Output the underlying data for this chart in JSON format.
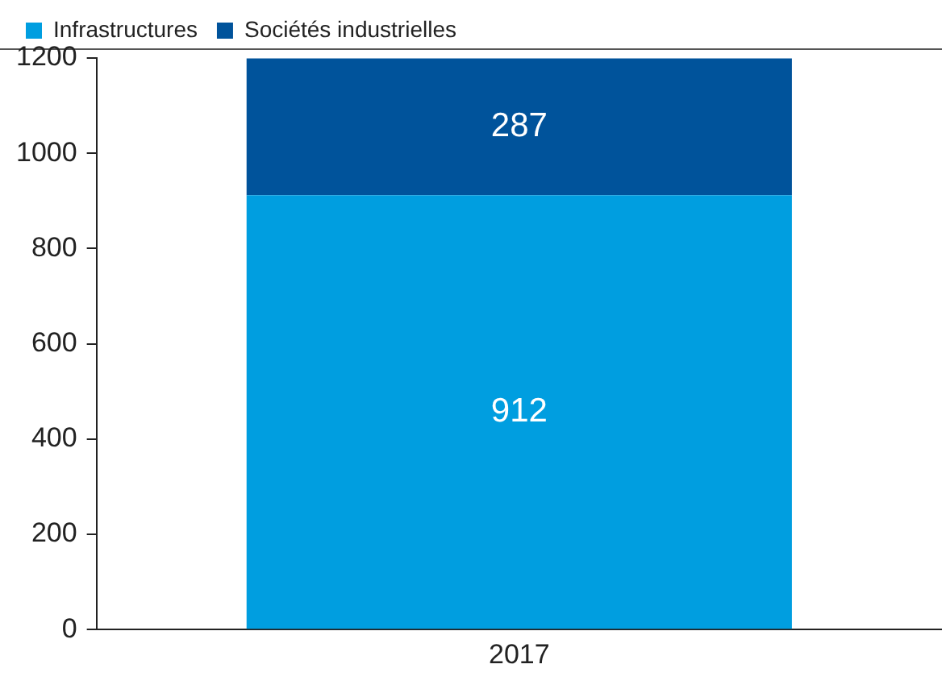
{
  "chart_data": {
    "type": "bar",
    "stacked": true,
    "categories": [
      "2017"
    ],
    "series": [
      {
        "name": "Infrastructures",
        "color": "#009ee0",
        "values": [
          912
        ]
      },
      {
        "name": "Sociétés industrielles",
        "color": "#00539b",
        "values": [
          287
        ]
      }
    ],
    "ylim": [
      0,
      1200
    ],
    "yticks": [
      0,
      200,
      400,
      600,
      800,
      1000,
      1200
    ],
    "grid": false,
    "legend": "top left",
    "data_labels": true
  }
}
